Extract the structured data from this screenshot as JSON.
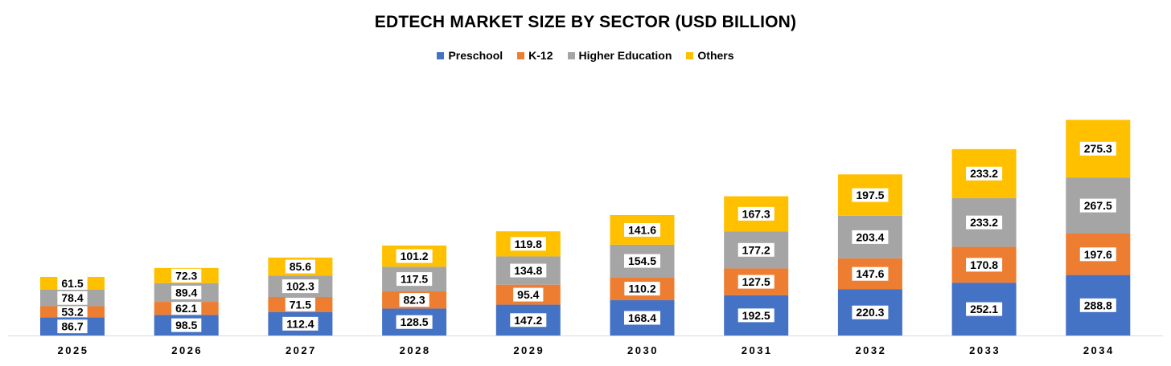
{
  "chart_data": {
    "type": "bar",
    "stacked": true,
    "title": "EDTECH MARKET SIZE BY SECTOR (USD BILLION)",
    "xlabel": "",
    "ylabel": "",
    "categories": [
      "2025",
      "2026",
      "2027",
      "2028",
      "2029",
      "2030",
      "2031",
      "2032",
      "2033",
      "2034"
    ],
    "series": [
      {
        "name": "Preschool",
        "color": "#4472C4",
        "values": [
          86.7,
          98.5,
          112.4,
          128.5,
          147.2,
          168.4,
          192.5,
          220.3,
          252.1,
          288.8
        ]
      },
      {
        "name": "K-12",
        "color": "#ED7D31",
        "values": [
          53.2,
          62.1,
          71.5,
          82.3,
          95.4,
          110.2,
          127.5,
          147.6,
          170.8,
          197.6
        ]
      },
      {
        "name": "Higher Education",
        "color": "#A5A5A5",
        "values": [
          78.4,
          89.4,
          102.3,
          117.5,
          134.8,
          154.5,
          177.2,
          203.4,
          233.2,
          267.5
        ]
      },
      {
        "name": "Others",
        "color": "#FFC000",
        "values": [
          61.5,
          72.3,
          85.6,
          101.2,
          119.8,
          141.6,
          167.3,
          197.5,
          233.2,
          275.3
        ]
      }
    ],
    "legend_position": "top",
    "grid": false,
    "data_labels": true
  }
}
